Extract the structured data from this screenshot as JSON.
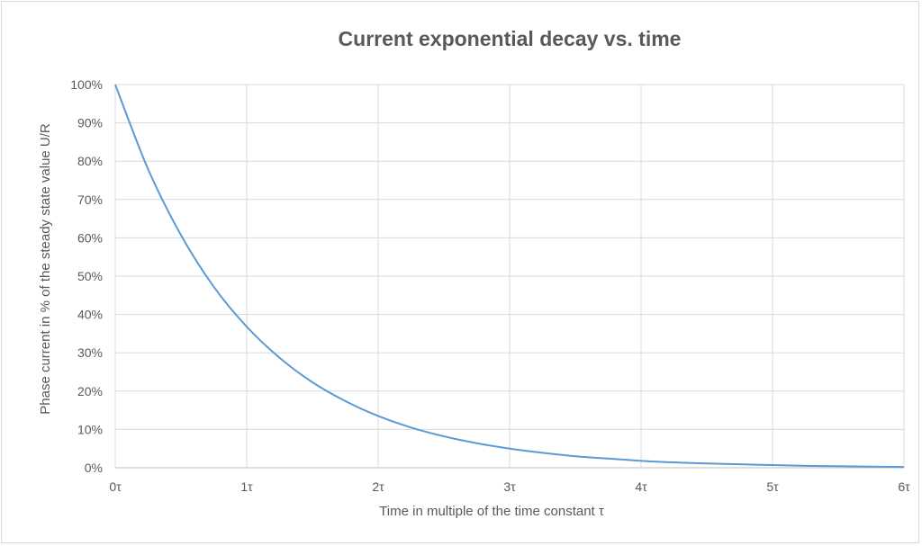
{
  "chart_data": {
    "type": "line",
    "title": "Current exponential decay vs. time",
    "xlabel": "Time in multiple of the time constant  τ",
    "ylabel": "Phase current in % of the steady state value U/R",
    "x_tick_labels": [
      "0τ",
      "1τ",
      "2τ",
      "3τ",
      "4τ",
      "5τ",
      "6τ"
    ],
    "y_tick_labels": [
      "0%",
      "10%",
      "20%",
      "30%",
      "40%",
      "50%",
      "60%",
      "70%",
      "80%",
      "90%",
      "100%"
    ],
    "xlim": [
      0,
      6
    ],
    "ylim": [
      0,
      100
    ],
    "grid": true,
    "legend": false,
    "series": [
      {
        "x": [
          0,
          0.25,
          0.5,
          0.75,
          1,
          1.25,
          1.5,
          1.75,
          2,
          2.25,
          2.5,
          2.75,
          3,
          3.25,
          3.5,
          3.75,
          4,
          4.25,
          4.5,
          4.75,
          5,
          5.25,
          5.5,
          5.75,
          6
        ],
        "values": [
          100,
          77.9,
          60.7,
          47.2,
          36.8,
          28.7,
          22.3,
          17.4,
          13.5,
          10.5,
          8.2,
          6.4,
          5.0,
          3.9,
          3.0,
          2.4,
          1.8,
          1.4,
          1.1,
          0.9,
          0.7,
          0.5,
          0.4,
          0.3,
          0.2
        ],
        "color": "#5b9bd5"
      }
    ]
  }
}
